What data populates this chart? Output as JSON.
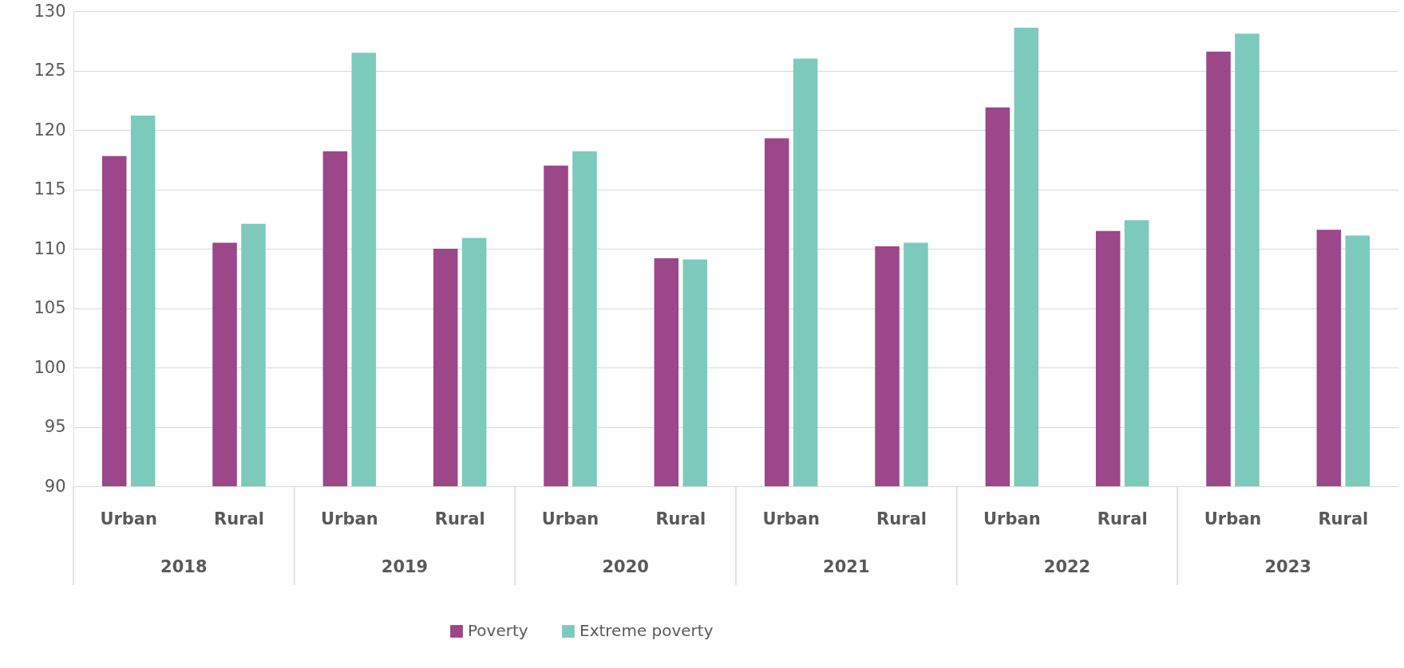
{
  "chart_data": {
    "type": "bar",
    "categories": [
      "Urban",
      "Rural",
      "Urban",
      "Rural",
      "Urban",
      "Rural",
      "Urban",
      "Rural",
      "Urban",
      "Rural",
      "Urban",
      "Rural"
    ],
    "series": [
      {
        "name": "Poverty",
        "color": "#9b4789",
        "values": [
          117.8,
          110.5,
          118.2,
          110.0,
          117.0,
          109.2,
          119.3,
          110.2,
          121.9,
          111.5,
          126.6,
          111.6
        ]
      },
      {
        "name": "Extreme poverty",
        "color": "#7ccabb",
        "values": [
          121.2,
          112.1,
          126.5,
          110.9,
          118.2,
          109.1,
          126.0,
          110.5,
          128.6,
          112.4,
          128.1,
          111.1
        ]
      }
    ],
    "annotations": [
      "2018",
      "2019",
      "2020",
      "2021",
      "2022",
      "2023"
    ],
    "ylim": [
      90,
      130
    ],
    "yticks": [
      90,
      95,
      100,
      105,
      110,
      115,
      120,
      125,
      130
    ],
    "grid": "y",
    "legend": "bottom"
  }
}
